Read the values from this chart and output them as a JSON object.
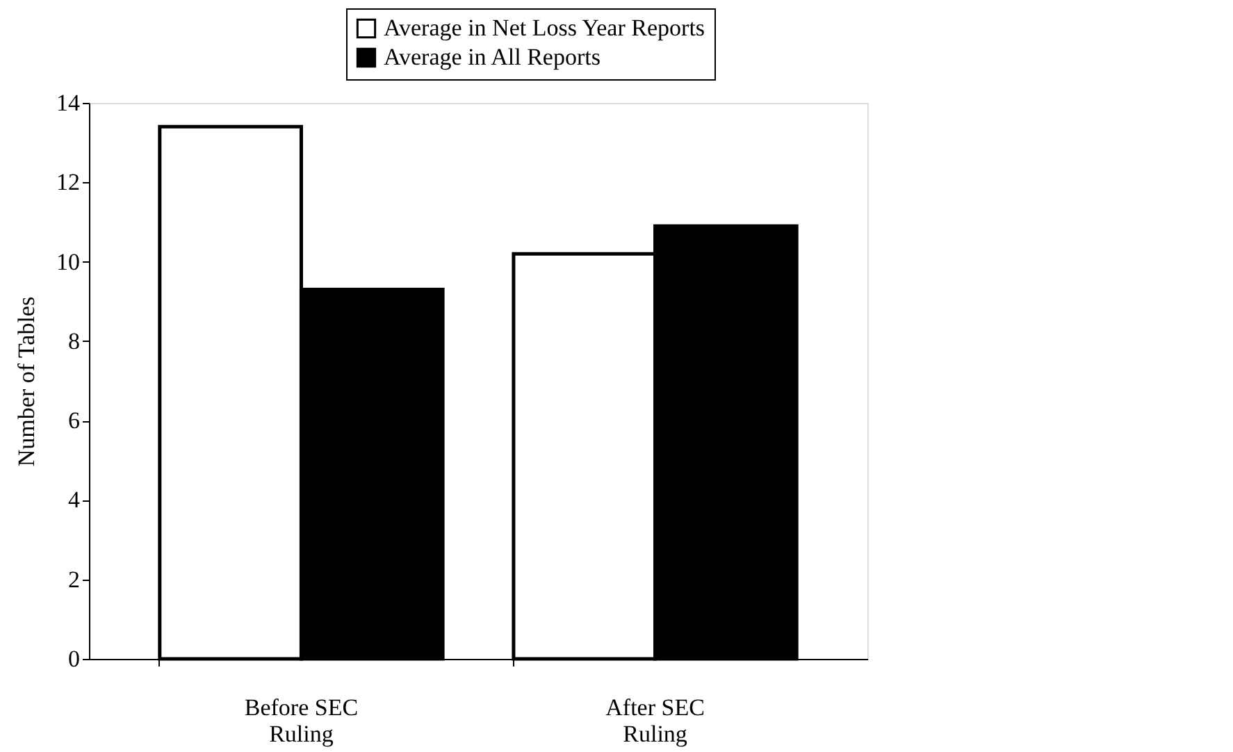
{
  "chart_data": {
    "type": "bar",
    "ylabel": "Number of Tables",
    "categories": [
      "Before SEC Ruling",
      "After SEC Ruling"
    ],
    "series": [
      {
        "name": "Average in Net Loss Year Reports",
        "color": "#ffffff",
        "values": [
          13.4,
          10.2
        ]
      },
      {
        "name": "Average in All Reports",
        "color": "#000000",
        "values": [
          9.3,
          10.9
        ]
      }
    ],
    "ylim": [
      0,
      14
    ],
    "yticks": [
      0,
      2,
      4,
      6,
      8,
      10,
      12,
      14
    ],
    "grid": false,
    "legend": "top right"
  }
}
